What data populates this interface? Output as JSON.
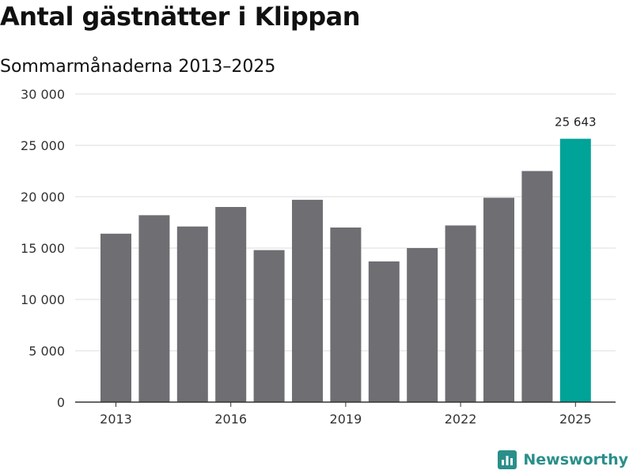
{
  "header": {
    "title": "Antal gästnätter i Klippan",
    "subtitle": "Sommarmånaderna 2013–2025"
  },
  "brand": {
    "name": "Newsworthy",
    "color": "#2a8f8a"
  },
  "colors": {
    "bar": "#6e6e73",
    "highlight": "#00a398",
    "grid": "#dddddd",
    "axis": "#333333",
    "text": "#333333"
  },
  "chart_data": {
    "type": "bar",
    "title": "",
    "xlabel": "",
    "ylabel": "",
    "categories": [
      "2013",
      "2014",
      "2015",
      "2016",
      "2017",
      "2018",
      "2019",
      "2020",
      "2021",
      "2022",
      "2023",
      "2024",
      "2025"
    ],
    "values": [
      16400,
      18200,
      17100,
      19000,
      14800,
      19700,
      17000,
      13700,
      15000,
      17200,
      19900,
      22500,
      25643
    ],
    "highlight_index": 12,
    "data_labels": [
      {
        "index": 12,
        "text": "25 643"
      }
    ],
    "ylim": [
      0,
      30000
    ],
    "yticks": [
      {
        "value": 0,
        "label": "0"
      },
      {
        "value": 5000,
        "label": "5 000"
      },
      {
        "value": 10000,
        "label": "10 000"
      },
      {
        "value": 15000,
        "label": "15 000"
      },
      {
        "value": 20000,
        "label": "20 000"
      },
      {
        "value": 25000,
        "label": "25 000"
      },
      {
        "value": 30000,
        "label": "30 000"
      }
    ],
    "xticks": [
      {
        "index": 0,
        "label": "2013"
      },
      {
        "index": 3,
        "label": "2016"
      },
      {
        "index": 6,
        "label": "2019"
      },
      {
        "index": 9,
        "label": "2022"
      },
      {
        "index": 12,
        "label": "2025"
      }
    ],
    "grid": true,
    "legend": "none"
  }
}
